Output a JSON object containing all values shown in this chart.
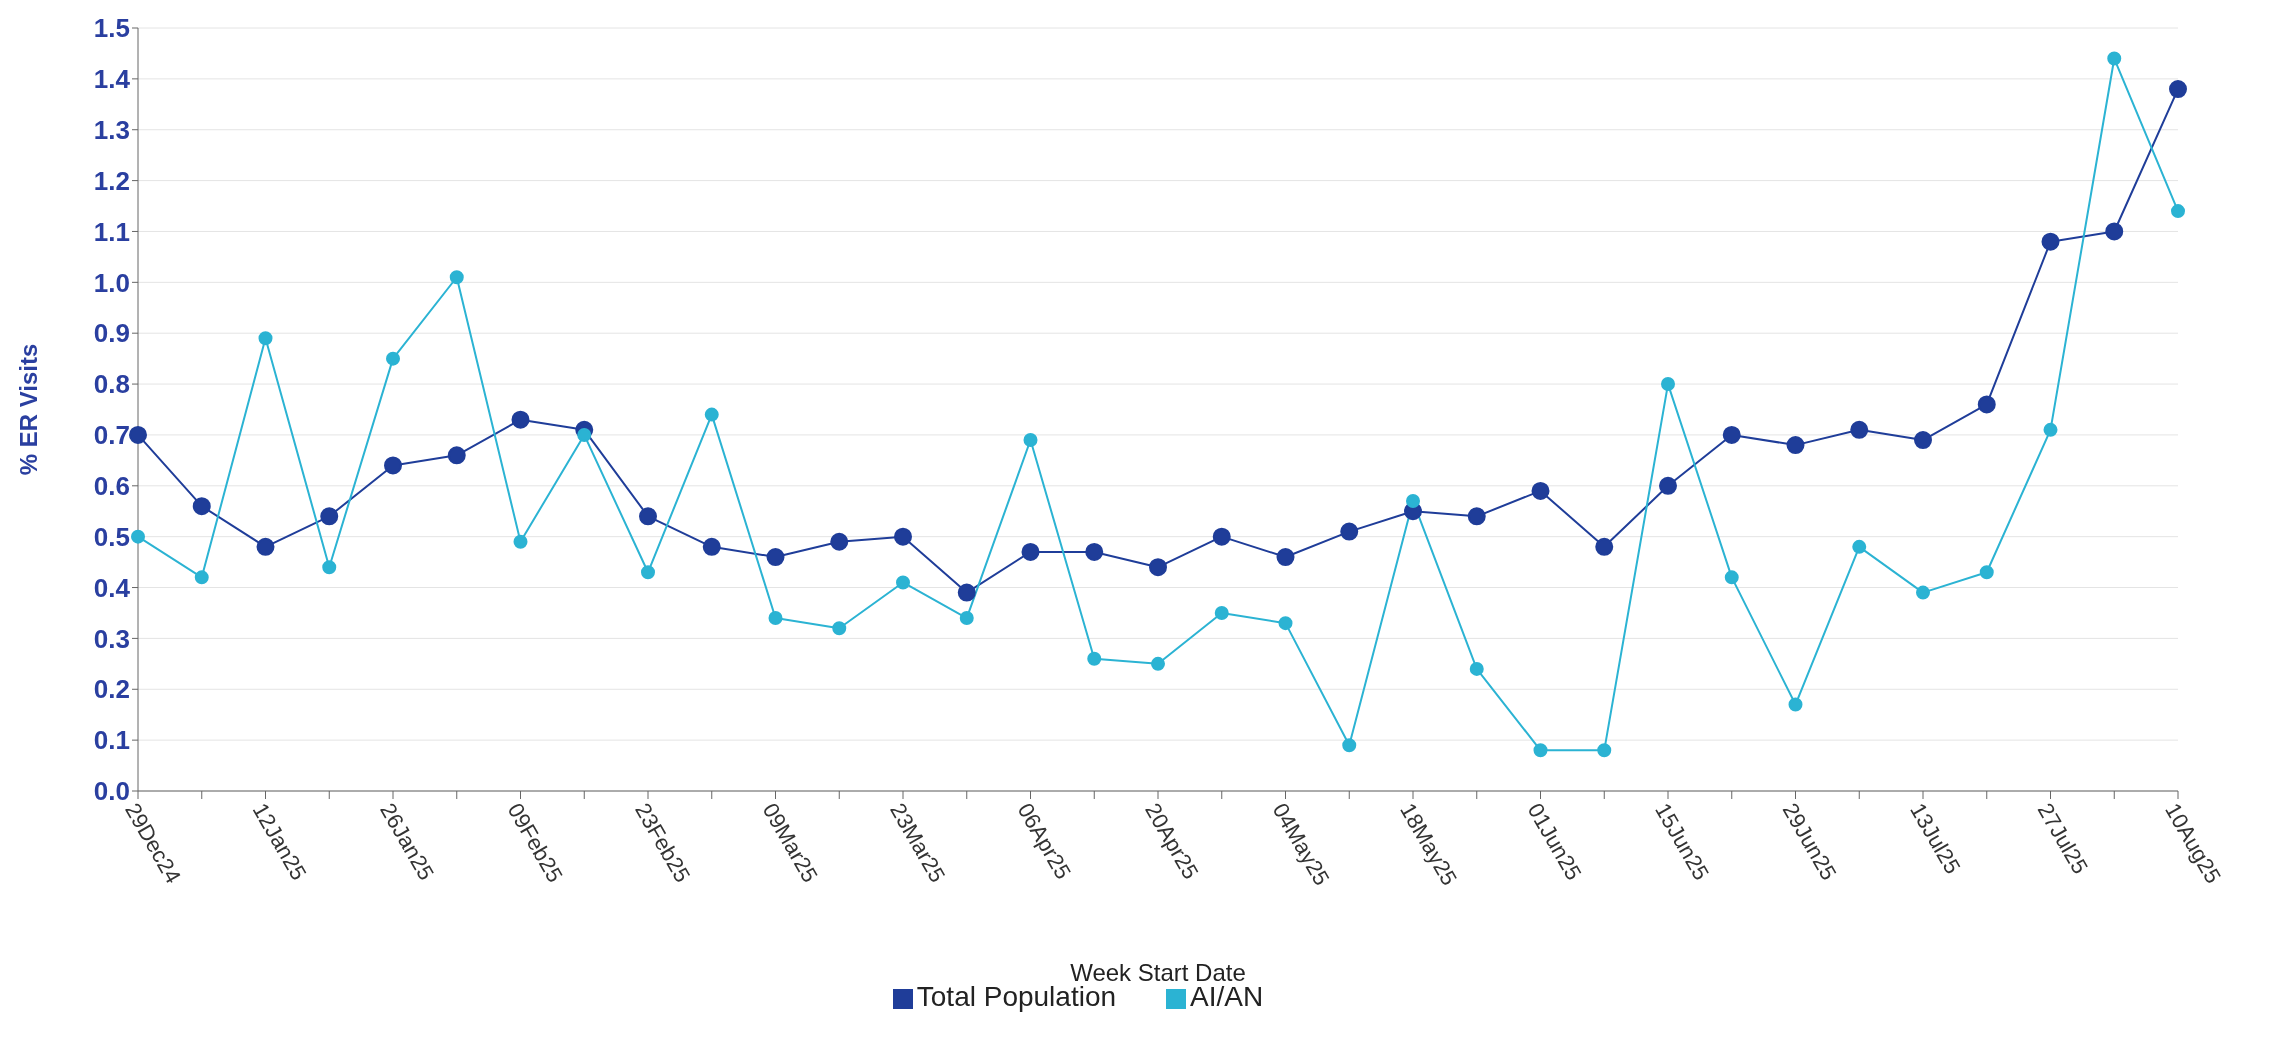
{
  "chart_data": {
    "type": "line",
    "xlabel": "Week Start Date",
    "ylabel": "% ER Visits",
    "categories": [
      "29Dec24",
      null,
      "12Jan25",
      null,
      "26Jan25",
      null,
      "09Feb25",
      null,
      "23Feb25",
      null,
      "09Mar25",
      null,
      "23Mar25",
      null,
      "06Apr25",
      null,
      "20Apr25",
      null,
      "04May25",
      null,
      "18May25",
      null,
      "01Jun25",
      null,
      "15Jun25",
      null,
      "29Jun25",
      null,
      "13Jul25",
      null,
      "27Jul25",
      null,
      "10Aug25"
    ],
    "series": [
      {
        "name": "Total Population",
        "color": "#1f3d99",
        "values": [
          0.7,
          0.56,
          0.48,
          0.54,
          0.64,
          0.66,
          0.73,
          0.71,
          0.54,
          0.48,
          0.46,
          0.49,
          0.5,
          0.39,
          0.47,
          0.47,
          0.44,
          0.5,
          0.46,
          0.51,
          0.55,
          0.54,
          0.59,
          0.48,
          0.6,
          0.7,
          0.68,
          0.71,
          0.69,
          0.76,
          1.08,
          1.1,
          1.38
        ]
      },
      {
        "name": "AI/AN",
        "color": "#2bb3d3",
        "values": [
          0.5,
          0.42,
          0.89,
          0.44,
          0.85,
          1.01,
          0.49,
          0.7,
          0.43,
          0.74,
          0.34,
          0.32,
          0.41,
          0.34,
          0.69,
          0.26,
          0.25,
          0.35,
          0.33,
          0.09,
          0.57,
          0.24,
          0.08,
          0.08,
          0.8,
          0.42,
          0.17,
          0.48,
          0.39,
          0.43,
          0.71,
          1.44,
          1.14
        ]
      }
    ],
    "ylim": [
      0,
      1.5
    ],
    "yticks": [
      {
        "value": 0,
        "label": "0.0"
      },
      0.1,
      0.2,
      0.3,
      0.4,
      0.5,
      0.6,
      0.7,
      0.8,
      0.9,
      {
        "value": 1,
        "label": "1.0"
      },
      1.1,
      1.2,
      1.3,
      1.4,
      1.5
    ],
    "grid": "y",
    "legend": "bottom",
    "marker": "circle",
    "line_style": "solid"
  }
}
